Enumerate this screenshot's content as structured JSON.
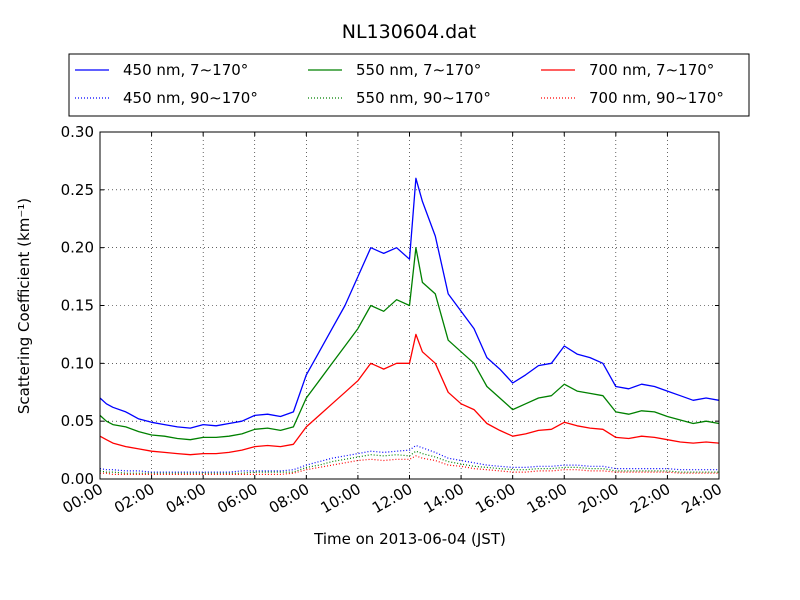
{
  "chart_data": {
    "type": "line",
    "title": "NL130604.dat",
    "xlabel": "Time on 2013-06-04 (JST)",
    "ylabel": "Scattering Coefficient (km⁻¹)",
    "xlim": [
      "00:00",
      "24:00"
    ],
    "ylim": [
      0.0,
      0.3
    ],
    "x_ticks": [
      "00:00",
      "02:00",
      "04:00",
      "06:00",
      "08:00",
      "10:00",
      "12:00",
      "14:00",
      "16:00",
      "18:00",
      "20:00",
      "22:00",
      "24:00"
    ],
    "y_ticks": [
      "0.00",
      "0.05",
      "0.10",
      "0.15",
      "0.20",
      "0.25",
      "0.30"
    ],
    "grid": true,
    "legend_position": "top",
    "x_hours": [
      0,
      0.25,
      0.5,
      1,
      1.5,
      2,
      2.5,
      3,
      3.5,
      4,
      4.5,
      5,
      5.5,
      6,
      6.5,
      7,
      7.5,
      8,
      8.5,
      9,
      9.5,
      10,
      10.5,
      11,
      11.5,
      12,
      12.25,
      12.5,
      13,
      13.5,
      14,
      14.5,
      15,
      15.5,
      16,
      16.5,
      17,
      17.5,
      18,
      18.5,
      19,
      19.5,
      20,
      20.5,
      21,
      21.5,
      22,
      22.5,
      23,
      23.5,
      24
    ],
    "series": [
      {
        "name": "450 nm, 7∼170°",
        "color": "#0000ff",
        "style": "solid",
        "values": [
          0.07,
          0.065,
          0.062,
          0.058,
          0.052,
          0.049,
          0.047,
          0.045,
          0.044,
          0.047,
          0.046,
          0.048,
          0.05,
          0.055,
          0.056,
          0.054,
          0.058,
          0.09,
          0.11,
          0.13,
          0.15,
          0.175,
          0.2,
          0.195,
          0.2,
          0.19,
          0.26,
          0.24,
          0.21,
          0.16,
          0.145,
          0.13,
          0.105,
          0.095,
          0.083,
          0.09,
          0.098,
          0.1,
          0.115,
          0.108,
          0.105,
          0.1,
          0.08,
          0.078,
          0.082,
          0.08,
          0.076,
          0.072,
          0.068,
          0.07,
          0.068
        ]
      },
      {
        "name": "550 nm, 7∼170°",
        "color": "#008000",
        "style": "solid",
        "values": [
          0.055,
          0.05,
          0.047,
          0.045,
          0.041,
          0.038,
          0.037,
          0.035,
          0.034,
          0.036,
          0.036,
          0.037,
          0.039,
          0.043,
          0.044,
          0.042,
          0.045,
          0.07,
          0.085,
          0.1,
          0.115,
          0.13,
          0.15,
          0.145,
          0.155,
          0.15,
          0.2,
          0.17,
          0.16,
          0.12,
          0.11,
          0.1,
          0.08,
          0.07,
          0.06,
          0.065,
          0.07,
          0.072,
          0.082,
          0.076,
          0.074,
          0.072,
          0.058,
          0.056,
          0.059,
          0.058,
          0.054,
          0.051,
          0.048,
          0.05,
          0.048
        ]
      },
      {
        "name": "700 nm, 7∼170°",
        "color": "#ff0000",
        "style": "solid",
        "values": [
          0.037,
          0.034,
          0.031,
          0.028,
          0.026,
          0.024,
          0.023,
          0.022,
          0.021,
          0.022,
          0.022,
          0.023,
          0.025,
          0.028,
          0.029,
          0.028,
          0.03,
          0.045,
          0.055,
          0.065,
          0.075,
          0.085,
          0.1,
          0.095,
          0.1,
          0.1,
          0.125,
          0.11,
          0.1,
          0.075,
          0.065,
          0.06,
          0.048,
          0.042,
          0.037,
          0.039,
          0.042,
          0.043,
          0.049,
          0.046,
          0.044,
          0.043,
          0.036,
          0.035,
          0.037,
          0.036,
          0.034,
          0.032,
          0.031,
          0.032,
          0.031
        ]
      },
      {
        "name": "450 nm, 90∼170°",
        "color": "#0000ff",
        "style": "dotted",
        "values": [
          0.009,
          0.008,
          0.008,
          0.007,
          0.007,
          0.006,
          0.006,
          0.006,
          0.006,
          0.006,
          0.006,
          0.006,
          0.007,
          0.007,
          0.007,
          0.007,
          0.008,
          0.012,
          0.015,
          0.018,
          0.02,
          0.022,
          0.024,
          0.023,
          0.024,
          0.025,
          0.029,
          0.027,
          0.023,
          0.018,
          0.016,
          0.014,
          0.012,
          0.011,
          0.01,
          0.01,
          0.011,
          0.011,
          0.012,
          0.012,
          0.011,
          0.011,
          0.009,
          0.009,
          0.009,
          0.009,
          0.009,
          0.008,
          0.008,
          0.008,
          0.008
        ]
      },
      {
        "name": "550 nm, 90∼170°",
        "color": "#008000",
        "style": "dotted",
        "values": [
          0.007,
          0.006,
          0.006,
          0.005,
          0.005,
          0.005,
          0.005,
          0.005,
          0.005,
          0.005,
          0.005,
          0.005,
          0.005,
          0.006,
          0.006,
          0.006,
          0.006,
          0.01,
          0.012,
          0.015,
          0.017,
          0.019,
          0.021,
          0.02,
          0.021,
          0.02,
          0.024,
          0.022,
          0.019,
          0.015,
          0.013,
          0.011,
          0.01,
          0.009,
          0.008,
          0.008,
          0.009,
          0.009,
          0.01,
          0.01,
          0.009,
          0.009,
          0.007,
          0.007,
          0.007,
          0.007,
          0.007,
          0.006,
          0.006,
          0.006,
          0.006
        ]
      },
      {
        "name": "700 nm, 90∼170°",
        "color": "#ff0000",
        "style": "dotted",
        "values": [
          0.005,
          0.005,
          0.004,
          0.004,
          0.004,
          0.004,
          0.004,
          0.004,
          0.004,
          0.004,
          0.004,
          0.004,
          0.004,
          0.004,
          0.004,
          0.004,
          0.005,
          0.008,
          0.01,
          0.012,
          0.014,
          0.016,
          0.017,
          0.016,
          0.017,
          0.017,
          0.02,
          0.018,
          0.016,
          0.012,
          0.011,
          0.009,
          0.008,
          0.007,
          0.006,
          0.006,
          0.007,
          0.007,
          0.008,
          0.008,
          0.007,
          0.007,
          0.006,
          0.006,
          0.006,
          0.006,
          0.006,
          0.005,
          0.005,
          0.005,
          0.005
        ]
      }
    ]
  }
}
